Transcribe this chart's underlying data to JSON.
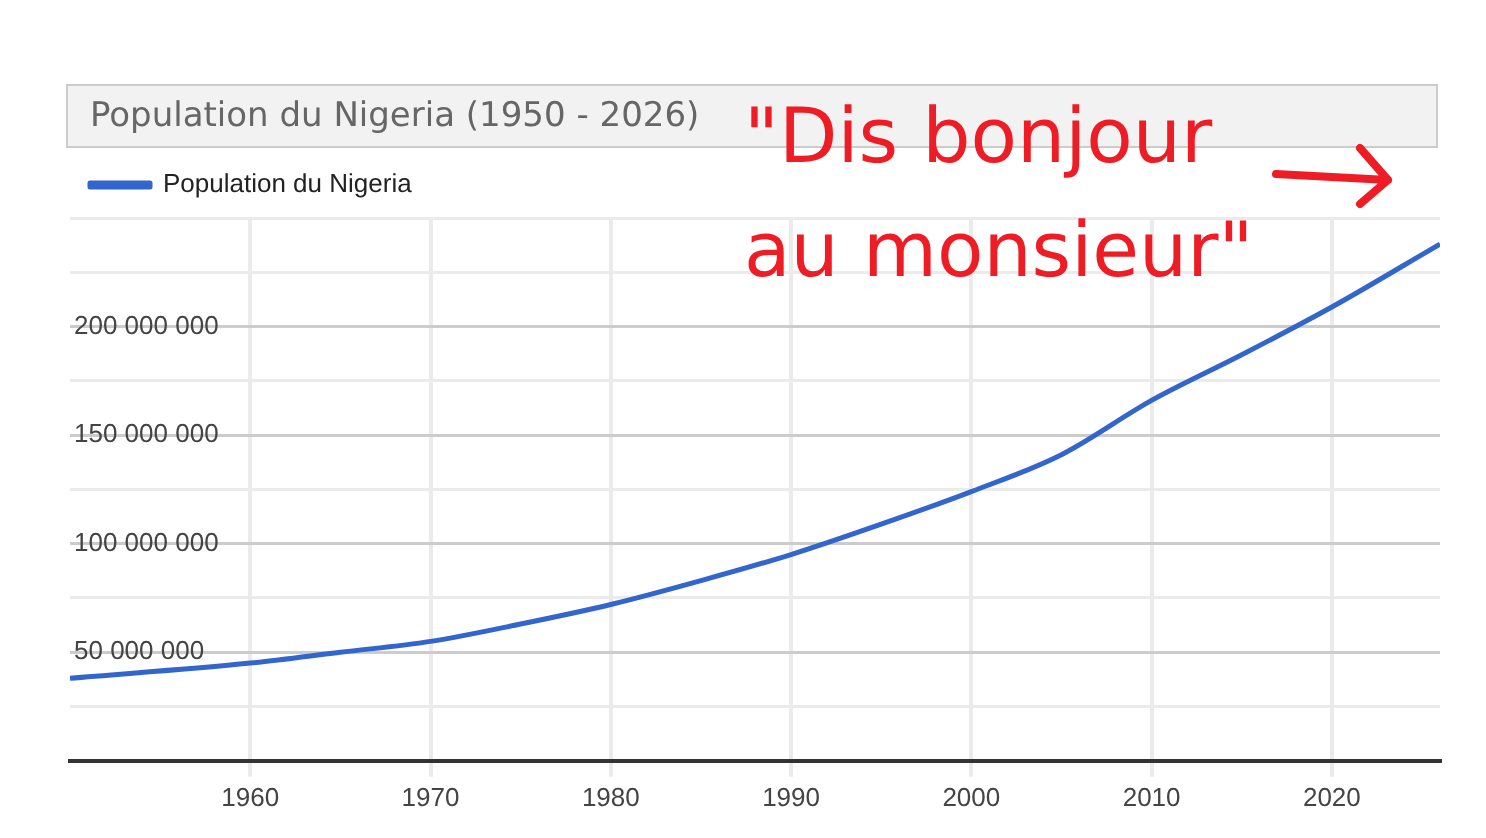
{
  "chart_data": {
    "type": "line",
    "title": "Population du Nigeria (1950 - 2026)",
    "x": [
      1950,
      1955,
      1960,
      1965,
      1970,
      1975,
      1980,
      1985,
      1990,
      1995,
      2000,
      2005,
      2010,
      2015,
      2020,
      2026
    ],
    "series": [
      {
        "name": "Population du Nigeria",
        "color": "#3366cc",
        "values": [
          38000000,
          null,
          45000000,
          50000000,
          55000000,
          63000000,
          72000000,
          83000000,
          95000000,
          109000000,
          124000000,
          141000000,
          166000000,
          187000000,
          209000000,
          238000000
        ]
      }
    ],
    "xlim": [
      1950,
      2026
    ],
    "xticks": [
      1960,
      1970,
      1980,
      1990,
      2000,
      2010,
      2020
    ],
    "ylim": [
      0,
      250000000
    ],
    "yticks": [
      {
        "value": 0,
        "label": null
      },
      {
        "value": 25000000,
        "label": null
      },
      {
        "value": 50000000,
        "label": "50 000 000"
      },
      {
        "value": 75000000,
        "label": null
      },
      {
        "value": 100000000,
        "label": "100 000 000"
      },
      {
        "value": 125000000,
        "label": null
      },
      {
        "value": 150000000,
        "label": "150 000 000"
      },
      {
        "value": 175000000,
        "label": null
      },
      {
        "value": 200000000,
        "label": "200 000 000"
      },
      {
        "value": 225000000,
        "label": null
      },
      {
        "value": 250000000,
        "label": null
      }
    ],
    "grid": true,
    "legend": "top left",
    "marker": "none",
    "line_style": "solid",
    "annotations": [
      "\"Dis bonjour\nau monsieur\""
    ]
  }
}
